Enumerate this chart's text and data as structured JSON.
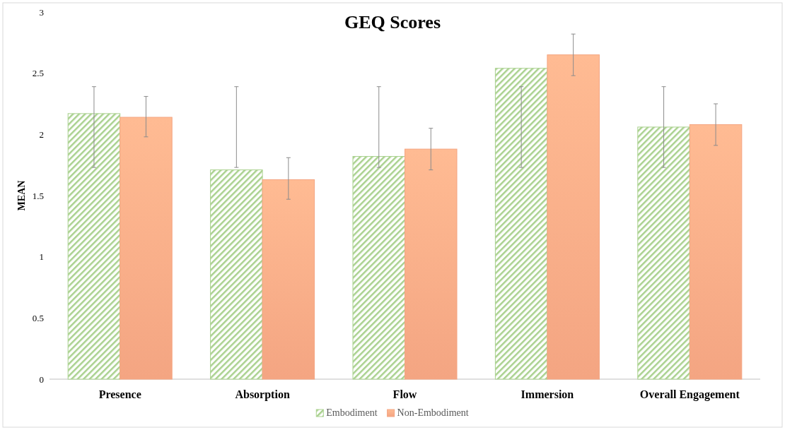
{
  "chart_data": {
    "type": "bar",
    "title": "GEQ Scores",
    "ylabel": "MEAN",
    "categories": [
      "Presence",
      "Absorption",
      "Flow",
      "Immersion",
      "Overall Engagement"
    ],
    "series": [
      {
        "name": "Embodiment",
        "color": "#a9d18e",
        "values": [
          2.17,
          1.71,
          1.82,
          2.54,
          2.06
        ],
        "errors": [
          [
            1.73,
            2.39
          ],
          [
            1.73,
            2.39
          ],
          [
            1.73,
            2.39
          ],
          [
            1.73,
            2.39
          ],
          [
            1.73,
            2.39
          ]
        ]
      },
      {
        "name": "Non-Embodiment",
        "color": "#f4a582",
        "values": [
          2.14,
          1.63,
          1.88,
          2.65,
          2.08
        ],
        "errors": [
          [
            1.98,
            2.31
          ],
          [
            1.47,
            1.81
          ],
          [
            1.71,
            2.05
          ],
          [
            2.48,
            2.82
          ],
          [
            1.91,
            2.25
          ]
        ]
      }
    ],
    "ylim": [
      0,
      3
    ],
    "yticks": [
      0,
      0.5,
      1,
      1.5,
      2,
      2.5,
      3
    ],
    "grid": false,
    "legend": "bottom"
  }
}
